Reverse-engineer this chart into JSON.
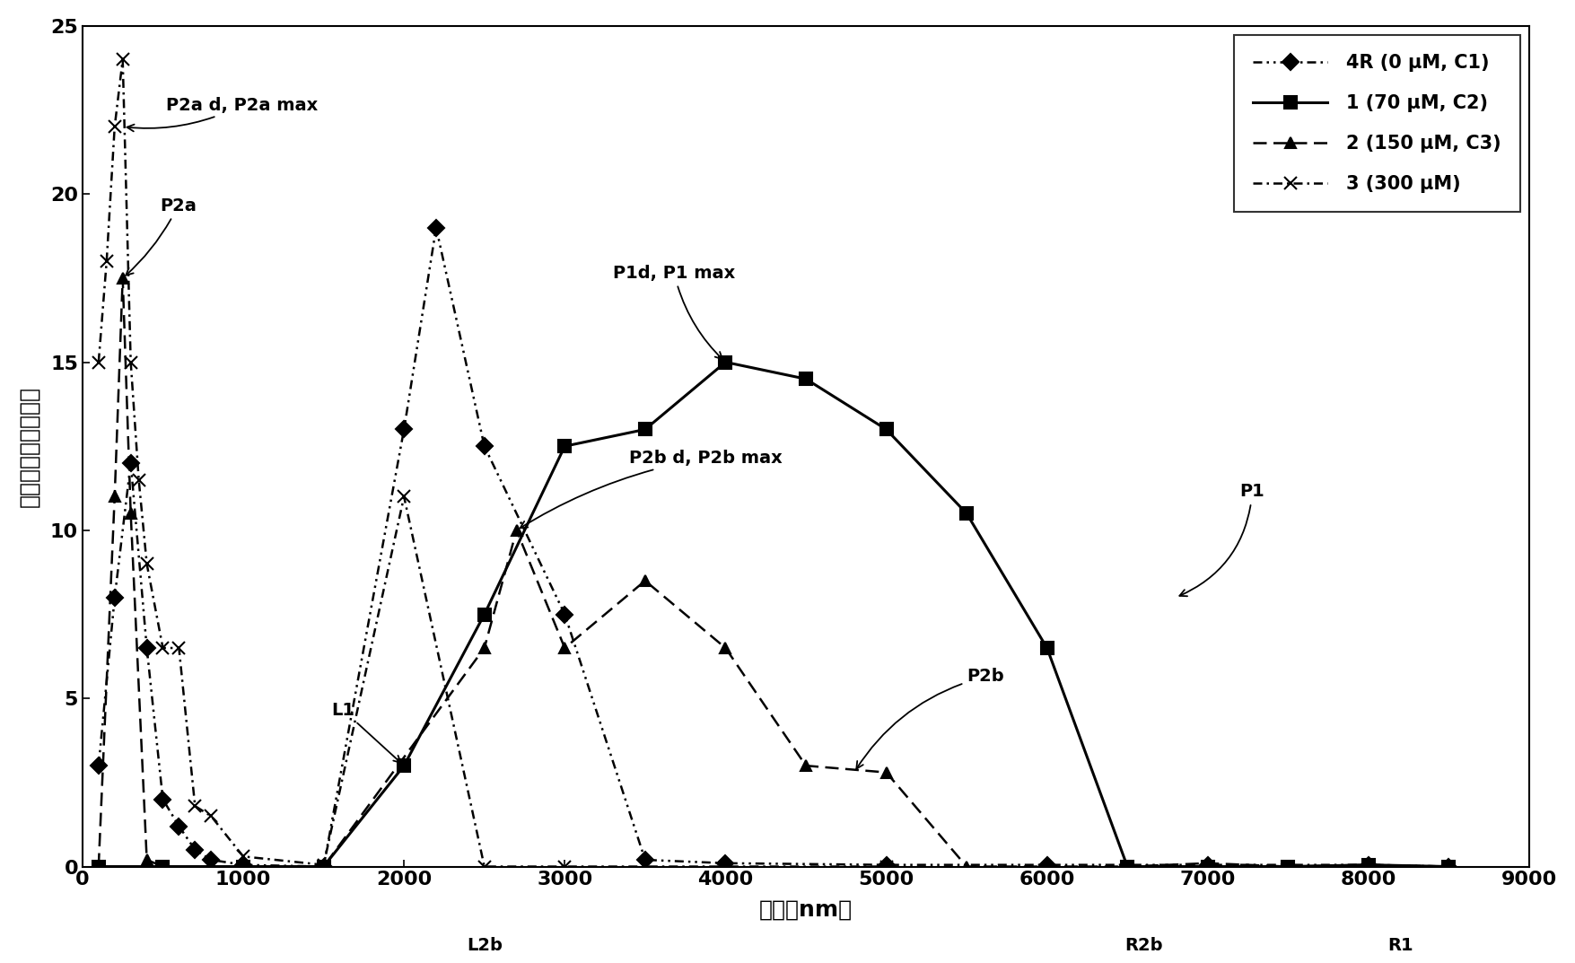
{
  "series": {
    "4R": {
      "label": "4R (0 μM, C1)",
      "x": [
        100,
        200,
        300,
        400,
        500,
        600,
        700,
        800,
        1000,
        1500,
        2000,
        2200,
        2500,
        3000,
        3500,
        4000,
        5000,
        6000,
        7000,
        8000,
        8500
      ],
      "y": [
        3.0,
        8.0,
        12.0,
        6.5,
        2.0,
        1.2,
        0.5,
        0.2,
        0.05,
        0.0,
        13.0,
        19.0,
        12.5,
        7.5,
        0.2,
        0.1,
        0.05,
        0.05,
        0.05,
        0.05,
        0.0
      ],
      "linestyle": "dashdot_dot",
      "marker": "D",
      "linewidth": 1.8,
      "markersize": 9,
      "color": "#000000"
    },
    "1": {
      "label": "1 (70 μM, C2)",
      "x": [
        100,
        500,
        1000,
        1500,
        2000,
        2500,
        3000,
        3500,
        4000,
        4500,
        5000,
        5500,
        6000,
        6500,
        7000,
        7500,
        8000,
        8500
      ],
      "y": [
        0.0,
        0.0,
        0.0,
        0.0,
        3.0,
        7.5,
        12.5,
        13.0,
        15.0,
        14.5,
        13.0,
        10.5,
        6.5,
        0.0,
        0.0,
        0.0,
        0.05,
        0.0
      ],
      "linestyle": "solid",
      "marker": "s",
      "linewidth": 2.2,
      "markersize": 10,
      "color": "#000000"
    },
    "2": {
      "label": "2 (150 μM, C3)",
      "x": [
        100,
        200,
        250,
        300,
        400,
        500,
        1000,
        1500,
        2500,
        2700,
        3000,
        3500,
        4000,
        4500,
        5000,
        5500,
        6000,
        6500,
        7000,
        7500,
        8000,
        8500
      ],
      "y": [
        0.0,
        11.0,
        17.5,
        10.5,
        0.2,
        0.0,
        0.0,
        0.0,
        6.5,
        10.0,
        6.5,
        8.5,
        6.5,
        3.0,
        2.8,
        0.0,
        0.0,
        0.0,
        0.1,
        0.0,
        0.05,
        0.0
      ],
      "linestyle": "dashed",
      "marker": "^",
      "linewidth": 1.8,
      "markersize": 9,
      "color": "#000000"
    },
    "3": {
      "label": "3 (300 μM)",
      "x": [
        100,
        150,
        200,
        250,
        300,
        350,
        400,
        500,
        600,
        700,
        800,
        1000,
        1500,
        2000,
        2500,
        3000,
        3500,
        4000,
        5000
      ],
      "y": [
        15.0,
        18.0,
        22.0,
        24.0,
        15.0,
        11.5,
        9.0,
        6.5,
        6.5,
        1.8,
        1.5,
        0.3,
        0.05,
        11.0,
        0.0,
        0.0,
        0.0,
        0.0,
        0.0
      ],
      "linestyle": "dashdot",
      "marker": "x",
      "linewidth": 1.8,
      "markersize": 10,
      "color": "#000000"
    }
  },
  "xlabel": "粒径［nm］",
  "ylabel": "散射強度分布［％］",
  "xlim": [
    0,
    9000
  ],
  "ylim": [
    0,
    25
  ],
  "xticks": [
    0,
    1000,
    2000,
    3000,
    4000,
    5000,
    6000,
    7000,
    8000,
    9000
  ],
  "yticks": [
    0,
    5,
    10,
    15,
    20,
    25
  ],
  "figsize": [
    17.56,
    10.73
  ],
  "dpi": 100
}
